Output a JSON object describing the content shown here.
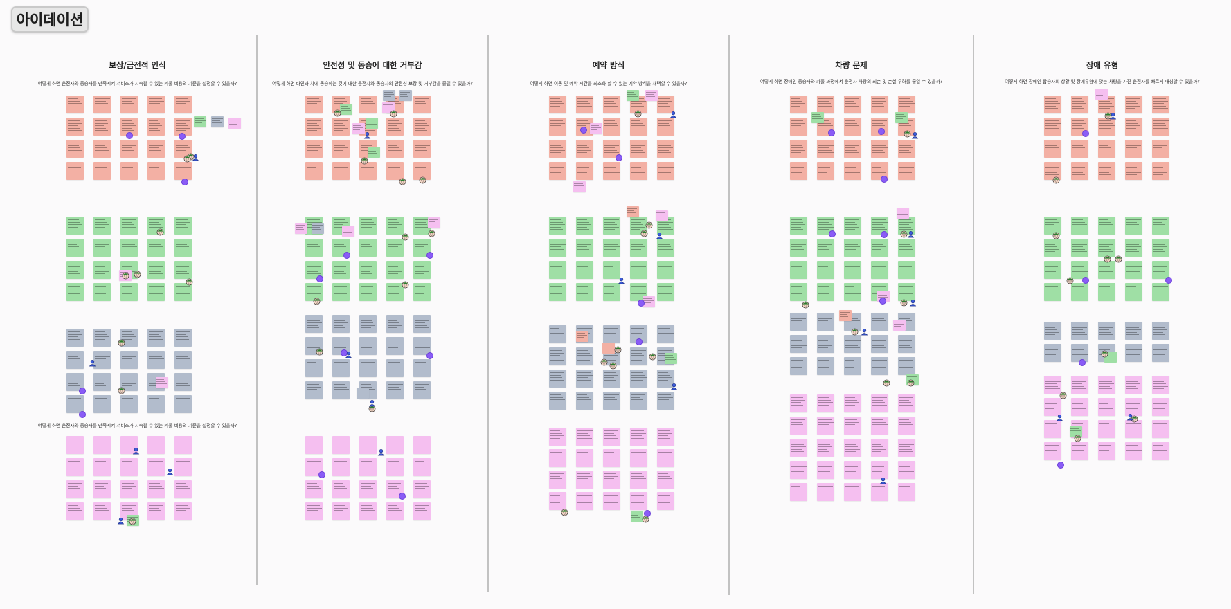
{
  "board": {
    "title": "아이데이션"
  },
  "columns": [
    {
      "title": "보상/금전적 인식",
      "question": "어떻게 하면 운전자와 동승자를 만족시켜 서비스가 지속될 수 있는 카풀 비용의 기준을 설정할 수 있을까?",
      "question_2": "어떻게 하면 운전자와 동승자를 만족시켜 서비스가 지속될 수 있는 카풀 비용의 기준을 설정할 수 있을까?"
    },
    {
      "title": "안전성 및 동승에 대한 거부감",
      "question": "어떻게 하면 타인과 차에 동승하는 것에 대한 운전자와 동승자의 안전성 보장 및 거부감을 줄일 수 있을까?"
    },
    {
      "title": "예약 방식",
      "question": "어떻게 하면 이동 및 예약 시간을 최소화 할 수 있는 예약 방식을 채택할 수 있을까?"
    },
    {
      "title": "차량 문제",
      "question": "어떻게 하면 장애인 동승자와 카풀 과정에서 운전자 차량의 최손 및 손실 우려를 줄일 수 있을까?"
    },
    {
      "title": "장애 유형",
      "question": "어떻게 하면 장애인 탑승자의 상황 및 장애유형에 맞는 차량을 가진 운전자를 빠르게 매칭할 수 있을까?"
    }
  ],
  "sticky_colors": {
    "salmon": "#f3b0a4",
    "green": "#9fdfa5",
    "slate": "#b2bccc",
    "pink": "#f5bff0",
    "vote_dot": "#8a5cf6"
  },
  "icons": {
    "vote": "vote-dot",
    "reaction": "face-avatar-icon",
    "participant": "user-avatar-icon"
  }
}
